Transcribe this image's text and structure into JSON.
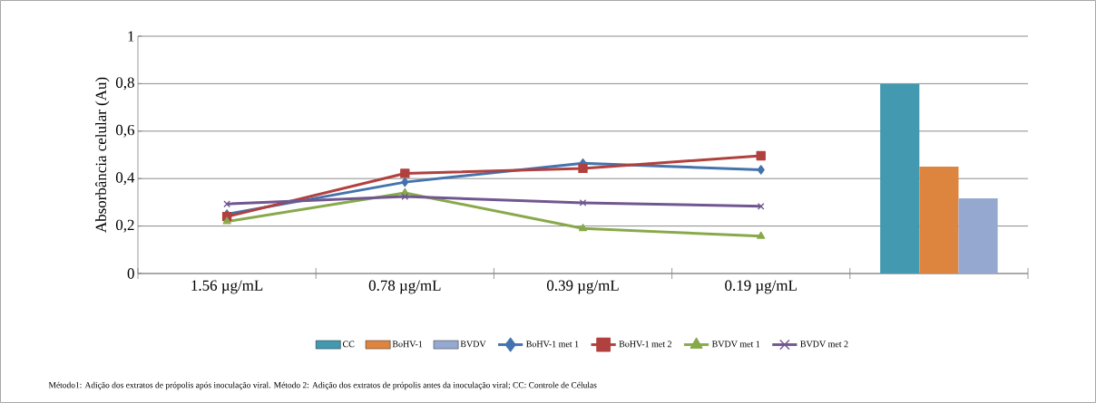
{
  "chart_data": {
    "type": "line",
    "ylabel": "Absorbância celular (Au)",
    "categories": [
      "1.56 µg/mL",
      "0.78 µg/mL",
      "0.39 µg/mL",
      "0.19 µg/mL",
      null
    ],
    "ylim": [
      0,
      1
    ],
    "yticks": [
      0,
      {
        "value": 0.2,
        "label": "0,2"
      },
      {
        "value": 0.4,
        "label": "0,4"
      },
      {
        "value": 0.6,
        "label": "0,6"
      },
      {
        "value": 0.8,
        "label": "0,8"
      },
      1
    ],
    "grid": "y",
    "legend": "bottom",
    "series": [
      {
        "name": "CC",
        "type": "bar",
        "color": "#4299b0",
        "values": [
          null,
          null,
          null,
          null,
          0.8
        ]
      },
      {
        "name": "BoHV-1",
        "type": "bar",
        "color": "#dd843f",
        "values": [
          null,
          null,
          null,
          null,
          0.45
        ]
      },
      {
        "name": "BVDV",
        "type": "bar",
        "color": "#95a9d0",
        "values": [
          null,
          null,
          null,
          null,
          0.317
        ]
      },
      {
        "name": "BoHV-1 met 1",
        "marker": "diamond",
        "color": "#4473ad",
        "values": [
          0.25,
          0.385,
          0.465,
          0.437,
          null
        ]
      },
      {
        "name": "BoHV-1 met 2",
        "marker": "square",
        "color": "#b0413e",
        "values": [
          0.24,
          0.422,
          0.443,
          0.496,
          null
        ]
      },
      {
        "name": "BVDV met 1",
        "marker": "triangle",
        "color": "#88a94b",
        "values": [
          0.219,
          0.34,
          0.19,
          0.157,
          null
        ]
      },
      {
        "name": "BVDV met 2",
        "marker": "cross",
        "color": "#71578f",
        "values": [
          0.293,
          0.324,
          0.298,
          0.283,
          null
        ]
      }
    ],
    "annotations": [
      "Método1:  Adição dos extratos de própolis após inoculação viral. Método 2: Adição dos extratos de própolis antes da inoculação viral; CC: Controle de Células"
    ]
  }
}
